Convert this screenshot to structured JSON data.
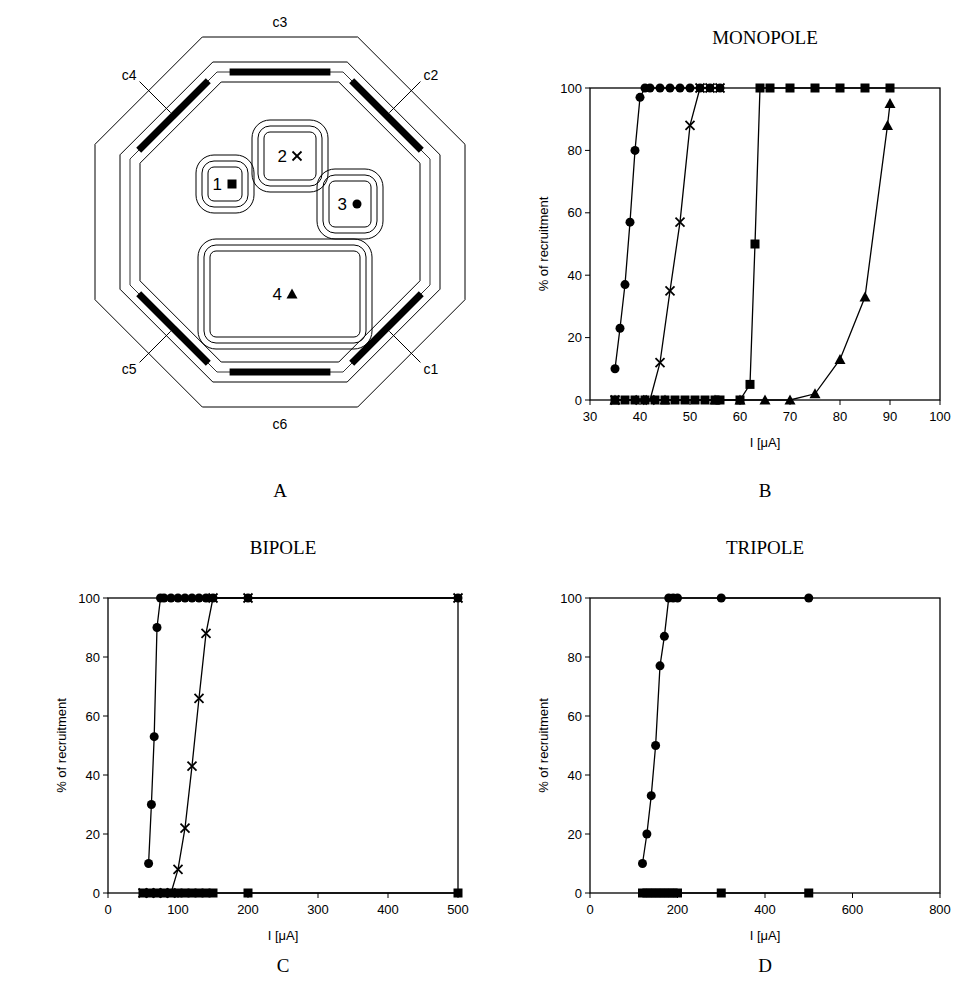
{
  "diagram": {
    "panel": "A",
    "contacts": [
      "c1",
      "c2",
      "c3",
      "c4",
      "c5",
      "c6"
    ],
    "fascicles": [
      {
        "label": "1",
        "marker": "square"
      },
      {
        "label": "2",
        "marker": "x"
      },
      {
        "label": "3",
        "marker": "circle"
      },
      {
        "label": "4",
        "marker": "triangle"
      }
    ]
  },
  "chart_data": [
    {
      "type": "line",
      "panel": "B",
      "title": "MONOPOLE",
      "x_label": "I [μA]",
      "y_label": "% of recruitment",
      "xlim": [
        30,
        100
      ],
      "xticks": [
        30,
        40,
        50,
        60,
        70,
        80,
        90,
        100
      ],
      "ylim": [
        0,
        100
      ],
      "yticks": [
        0,
        20,
        40,
        60,
        80,
        100
      ],
      "grid": false,
      "color": "#000000",
      "line_style": "solid",
      "series": [
        {
          "marker": "triangle",
          "x": [
            35,
            45,
            55,
            60,
            65,
            70,
            75,
            80,
            85,
            89.5,
            90
          ],
          "values": [
            0,
            0,
            0,
            0,
            0,
            0,
            2,
            13,
            33,
            88,
            95
          ]
        },
        {
          "marker": "x",
          "x": [
            35,
            40,
            42,
            44,
            46,
            48,
            50,
            52,
            54,
            56
          ],
          "values": [
            0,
            0,
            0,
            12,
            35,
            57,
            88,
            100,
            100,
            100
          ]
        },
        {
          "marker": "circle",
          "x": [
            35,
            36,
            37,
            38,
            39,
            40,
            41,
            42,
            44,
            46,
            48,
            50,
            52,
            54,
            56
          ],
          "values": [
            10,
            23,
            37,
            57,
            80,
            97,
            100,
            100,
            100,
            100,
            100,
            100,
            100,
            100,
            100
          ]
        },
        {
          "marker": "square",
          "x": [
            35,
            37,
            39,
            41,
            43,
            45,
            47,
            49,
            51,
            53,
            55,
            56,
            60,
            62,
            63,
            64,
            66,
            70,
            75,
            80,
            85,
            90
          ],
          "values": [
            0,
            0,
            0,
            0,
            0,
            0,
            0,
            0,
            0,
            0,
            0,
            0,
            0,
            5,
            50,
            100,
            100,
            100,
            100,
            100,
            100,
            100
          ]
        }
      ]
    },
    {
      "type": "line",
      "panel": "C",
      "title": "BIPOLE",
      "x_label": "I [μA]",
      "y_label": "% of recruitment",
      "xlim": [
        0,
        500
      ],
      "xticks": [
        0,
        100,
        200,
        300,
        400,
        500
      ],
      "ylim": [
        0,
        100
      ],
      "yticks": [
        0,
        20,
        40,
        60,
        80,
        100
      ],
      "grid": false,
      "color": "#000000",
      "line_style": "solid",
      "series": [
        {
          "marker": "x",
          "x": [
            50,
            60,
            70,
            80,
            90,
            100,
            110,
            120,
            130,
            140,
            150,
            200,
            500
          ],
          "values": [
            0,
            0,
            0,
            0,
            0,
            8,
            22,
            43,
            66,
            88,
            100,
            100,
            100
          ]
        },
        {
          "marker": "circle",
          "x": [
            58,
            62,
            66,
            70,
            75,
            80,
            90,
            100,
            110,
            120,
            130,
            140,
            150,
            200,
            500
          ],
          "values": [
            10,
            30,
            53,
            90,
            100,
            100,
            100,
            100,
            100,
            100,
            100,
            100,
            100,
            100,
            100
          ]
        },
        {
          "marker": "square",
          "x": [
            50,
            60,
            70,
            80,
            90,
            100,
            110,
            120,
            130,
            140,
            150,
            200,
            500
          ],
          "values": [
            0,
            0,
            0,
            0,
            0,
            0,
            0,
            0,
            0,
            0,
            0,
            0,
            0
          ]
        }
      ]
    },
    {
      "type": "line",
      "panel": "D",
      "title": "TRIPOLE",
      "x_label": "I [μA]",
      "y_label": "% of recruitment",
      "xlim": [
        0,
        800
      ],
      "xticks": [
        0,
        200,
        400,
        600,
        800
      ],
      "ylim": [
        0,
        100
      ],
      "yticks": [
        0,
        20,
        40,
        60,
        80,
        100
      ],
      "grid": false,
      "color": "#000000",
      "line_style": "solid",
      "series": [
        {
          "marker": "circle",
          "x": [
            120,
            130,
            140,
            150,
            160,
            170,
            180,
            190,
            200,
            300,
            500
          ],
          "values": [
            10,
            20,
            33,
            50,
            77,
            87,
            100,
            100,
            100,
            100,
            100
          ]
        },
        {
          "marker": "square",
          "x": [
            120,
            130,
            140,
            150,
            160,
            170,
            180,
            190,
            200,
            300,
            500
          ],
          "values": [
            0,
            0,
            0,
            0,
            0,
            0,
            0,
            0,
            0,
            0,
            0
          ]
        }
      ]
    }
  ]
}
